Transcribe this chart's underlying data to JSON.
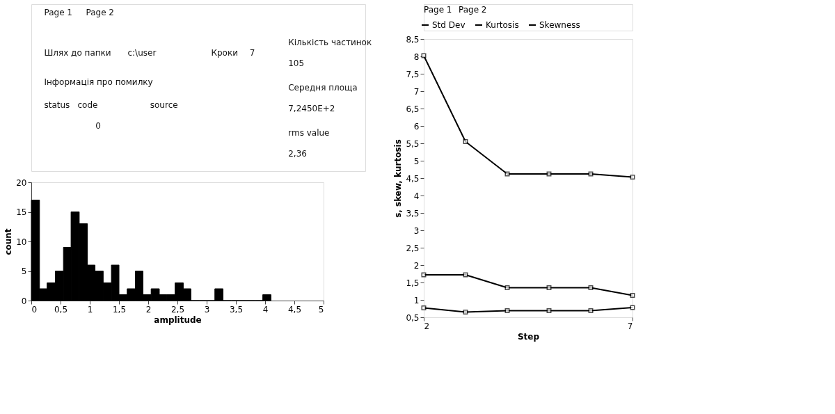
{
  "chart_data": [
    {
      "type": "other",
      "annotations": [
        "Page 1",
        "Page 2",
        "Шлях до папки",
        "c:\\user",
        "Кроки",
        "7",
        "Інформація про помилку",
        "status",
        "code",
        "0",
        "source",
        "Кількість частинок",
        "105",
        "Середня площа",
        "7,2450E+2",
        "rms value",
        "2,36"
      ]
    },
    {
      "type": "histogram",
      "xlabel": "amplitude",
      "ylabel": "count",
      "color": "#000000",
      "bins": [
        0,
        0.14,
        0.27,
        0.41,
        0.55,
        0.68,
        0.82,
        0.96,
        1.09,
        1.23,
        1.37,
        1.5,
        1.64,
        1.78,
        1.91,
        2.05,
        2.19,
        2.32,
        2.46,
        2.6,
        2.73,
        2.87,
        3.01,
        3.14,
        3.28,
        3.42,
        3.55,
        3.69,
        3.83,
        3.96,
        4.1
      ],
      "values": [
        17,
        2,
        3,
        5,
        9,
        15,
        13,
        6,
        5,
        3,
        6,
        1,
        2,
        5,
        1,
        2,
        1,
        1,
        3,
        2,
        0,
        0,
        0,
        2,
        0,
        0,
        0,
        0,
        0,
        1
      ],
      "xlim": [
        0,
        5
      ],
      "xticks": [
        0,
        {
          "value": 0.5,
          "label": "0,5"
        },
        1,
        {
          "value": 1.5,
          "label": "1,5"
        },
        2,
        {
          "value": 2.5,
          "label": "2,5"
        },
        3,
        {
          "value": 3.5,
          "label": "3,5"
        },
        4,
        {
          "value": 4.5,
          "label": "4,5"
        },
        5
      ],
      "ylim": [
        0,
        20
      ],
      "yticks": [
        0,
        5,
        10,
        15,
        20
      ],
      "grid": false
    },
    {
      "type": "line",
      "annotations": [
        "Page 1",
        "Page 2"
      ],
      "xlabel": "Step",
      "ylabel": "s, skew, kurtosis",
      "x": [
        2,
        3,
        4,
        5,
        6,
        7
      ],
      "series": [
        {
          "name": "Std Dev",
          "color": "#000000",
          "values": [
            0.77,
            0.65,
            0.69,
            0.69,
            0.69,
            0.78
          ]
        },
        {
          "name": "Kurtosis",
          "color": "#000000",
          "values": [
            8.02,
            5.55,
            4.62,
            4.62,
            4.62,
            4.53
          ]
        },
        {
          "name": "Skewness",
          "color": "#000000",
          "values": [
            1.72,
            1.72,
            1.35,
            1.35,
            1.35,
            1.13
          ]
        }
      ],
      "xlim": [
        2,
        7
      ],
      "xticks": [
        2,
        7
      ],
      "ylim": [
        0.5,
        8.5
      ],
      "yticks": [
        {
          "value": 0.5,
          "label": "0,5"
        },
        1,
        {
          "value": 1.5,
          "label": "1,5"
        },
        2,
        {
          "value": 2.5,
          "label": "2,5"
        },
        3,
        {
          "value": 3.5,
          "label": "3,5"
        },
        4,
        {
          "value": 4.5,
          "label": "4,5"
        },
        5,
        {
          "value": 5.5,
          "label": "5,5"
        },
        6,
        {
          "value": 6.5,
          "label": "6,5"
        },
        7,
        {
          "value": 7.5,
          "label": "7,5"
        },
        8,
        {
          "value": 8.5,
          "label": "8,5"
        }
      ],
      "legend": "top",
      "marker": "square",
      "line_style": "solid",
      "grid": false
    }
  ]
}
